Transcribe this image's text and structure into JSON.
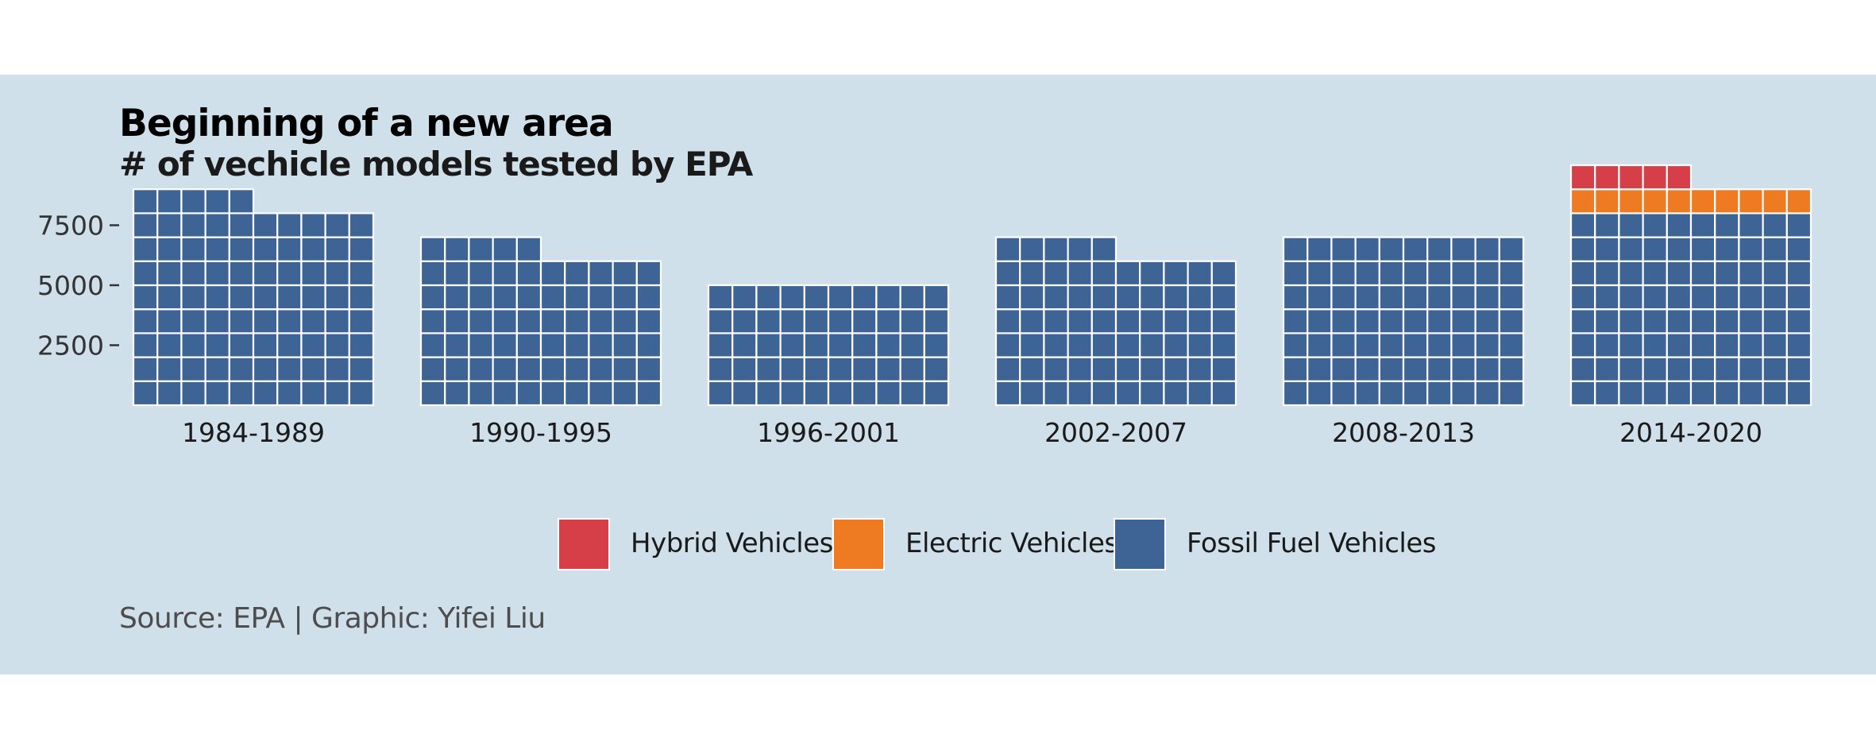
{
  "title": "Beginning of a new area",
  "subtitle": "# of vechicle models tested by EPA",
  "caption": "Source: EPA | Graphic: Yifei Liu",
  "colors": {
    "background": "#cfe0ea",
    "hybrid": "#d63f47",
    "electric": "#ee7a22",
    "fossil": "#3e6496",
    "cell_border": "#ffffff"
  },
  "chart_data": {
    "type": "waffle",
    "unit_per_square": 500,
    "squares_per_row": 10,
    "ylim": [
      0,
      9500
    ],
    "yticks": [
      2500,
      5000,
      7500
    ],
    "ytick_labels": [
      "2500",
      "5000",
      "7500"
    ],
    "categories": [
      "1984-1989",
      "1990-1995",
      "1996-2001",
      "2002-2007",
      "2008-2013",
      "2014-2020"
    ],
    "series": [
      {
        "name": "Hybrid Vehicles",
        "color_key": "hybrid",
        "values": [
          0,
          0,
          0,
          0,
          0,
          500
        ]
      },
      {
        "name": "Electric Vehicles",
        "color_key": "electric",
        "values": [
          0,
          0,
          0,
          0,
          0,
          1000
        ]
      },
      {
        "name": "Fossil Fuel Vehicles",
        "color_key": "fossil",
        "values": [
          8500,
          6500,
          5000,
          6500,
          7000,
          8000
        ]
      }
    ],
    "legend_position": "bottom"
  },
  "legend": {
    "items": [
      {
        "label": "Hybrid Vehicles",
        "color_key": "hybrid"
      },
      {
        "label": "Electric Vehicles",
        "color_key": "electric"
      },
      {
        "label": "Fossil Fuel Vehicles",
        "color_key": "fossil"
      }
    ]
  }
}
